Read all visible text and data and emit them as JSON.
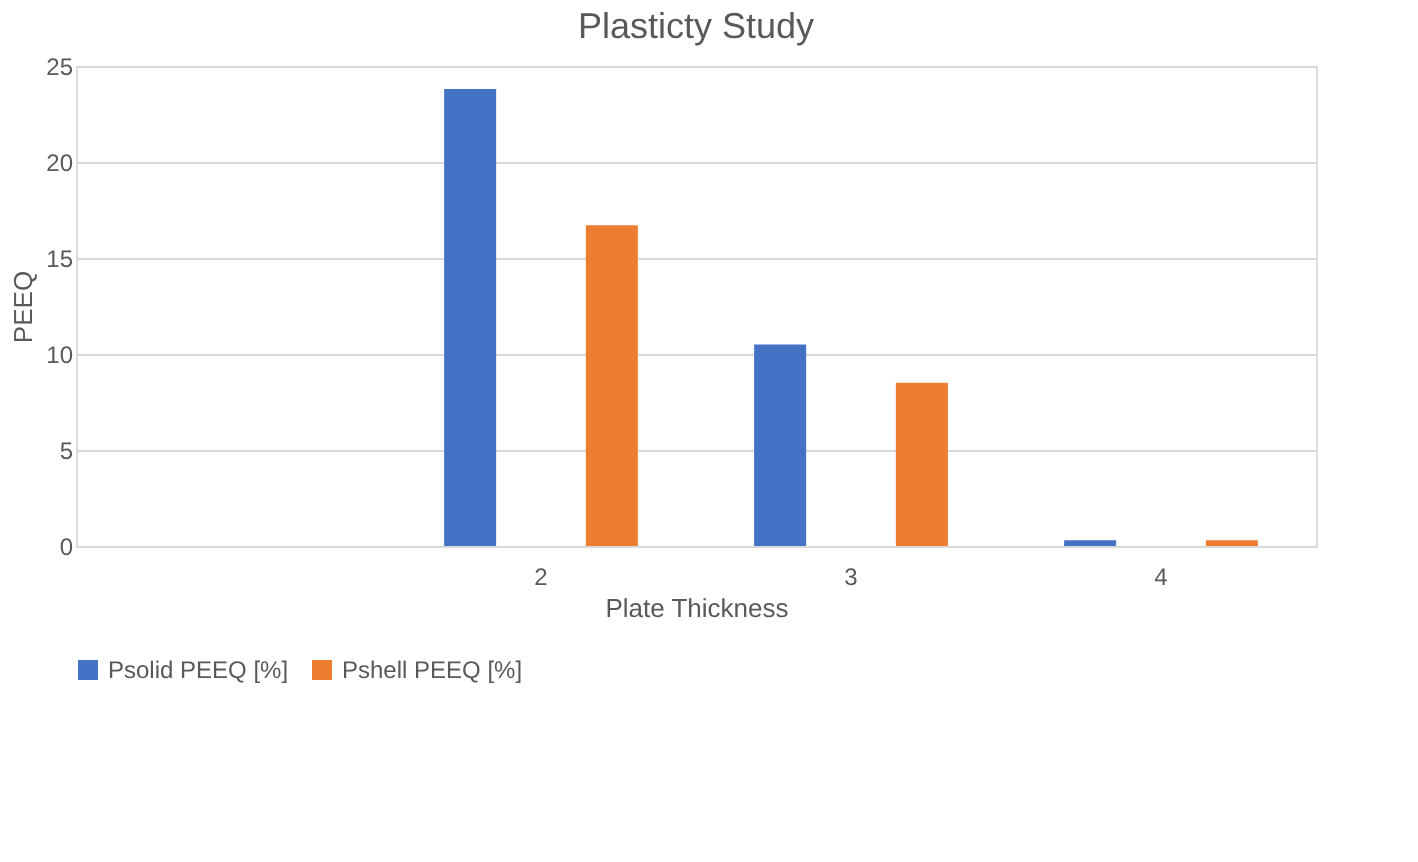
{
  "chart_data": {
    "type": "bar",
    "title": "Plasticty Study",
    "xlabel": "Plate Thickness",
    "ylabel": "PEEQ",
    "categories": [
      null,
      "2",
      "3",
      "4"
    ],
    "series": [
      {
        "name": "Psolid PEEQ [%]",
        "color": "#4472c4",
        "values": [
          null,
          23.8,
          10.5,
          0.3
        ]
      },
      {
        "name": "Pshell PEEQ [%]",
        "color": "#ed7d31",
        "values": [
          null,
          16.7,
          8.5,
          0.3
        ]
      }
    ],
    "ylim": [
      0,
      25
    ],
    "yticks": [
      0,
      5,
      10,
      15,
      20,
      25
    ],
    "grid": "y",
    "legend": "bottom"
  }
}
